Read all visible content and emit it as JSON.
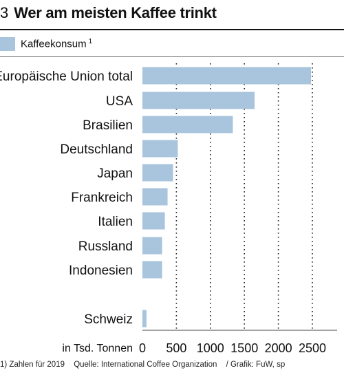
{
  "header": {
    "number": "3",
    "title": "Wer am meisten Kaffee trinkt"
  },
  "legend": {
    "label": "Kaffeekonsum",
    "superscript": "1",
    "color": "#a9c4dd"
  },
  "chart_data": {
    "type": "bar",
    "orientation": "horizontal",
    "categories": [
      "Europäische Union total",
      "USA",
      "Brasilien",
      "Deutschland",
      "Japan",
      "Frankreich",
      "Italien",
      "Russland",
      "Indonesien",
      "Schweiz"
    ],
    "values": [
      2480,
      1650,
      1330,
      520,
      450,
      370,
      330,
      290,
      290,
      60
    ],
    "series": [
      {
        "name": "Kaffeekonsum",
        "values": [
          2480,
          1650,
          1330,
          520,
          450,
          370,
          330,
          290,
          290,
          60
        ]
      }
    ],
    "xlabel": "in Tsd. Tonnen",
    "xticks": [
      0,
      500,
      1000,
      1500,
      2000,
      2500
    ],
    "xlim": [
      0,
      2600
    ],
    "grid": "vertical dotted",
    "bar_color": "#a9c4dd"
  },
  "footer": {
    "note": "1) Zahlen für 2019",
    "source": "Quelle: International Coffee Organization",
    "credit": "/ Grafik: FuW, sp"
  }
}
